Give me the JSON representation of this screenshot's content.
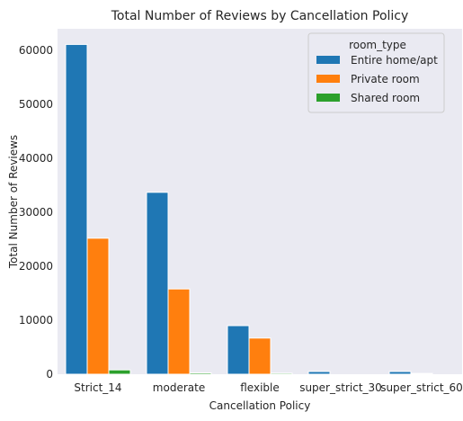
{
  "chart_data": {
    "type": "bar",
    "title": "Total Number of Reviews by Cancellation Policy",
    "xlabel": "Cancellation Policy",
    "ylabel": "Total Number of Reviews",
    "categories": [
      "Strict_14",
      "moderate",
      "flexible",
      "super_strict_30",
      "super_strict_60"
    ],
    "series": [
      {
        "name": "Entire home/apt",
        "color": "#1f77b4",
        "values": [
          61100,
          33700,
          9000,
          500,
          500
        ]
      },
      {
        "name": "Private room",
        "color": "#ff7f0e",
        "values": [
          25200,
          15800,
          6700,
          0,
          150
        ]
      },
      {
        "name": "Shared room",
        "color": "#2ca02c",
        "values": [
          800,
          250,
          200,
          0,
          0
        ]
      }
    ],
    "ylim": [
      0,
      64000
    ],
    "yticks": [
      0,
      10000,
      20000,
      30000,
      40000,
      50000,
      60000
    ],
    "legend": {
      "title": "room_type",
      "placement": "top-right"
    },
    "grid": false,
    "background": "#eaeaf2"
  }
}
